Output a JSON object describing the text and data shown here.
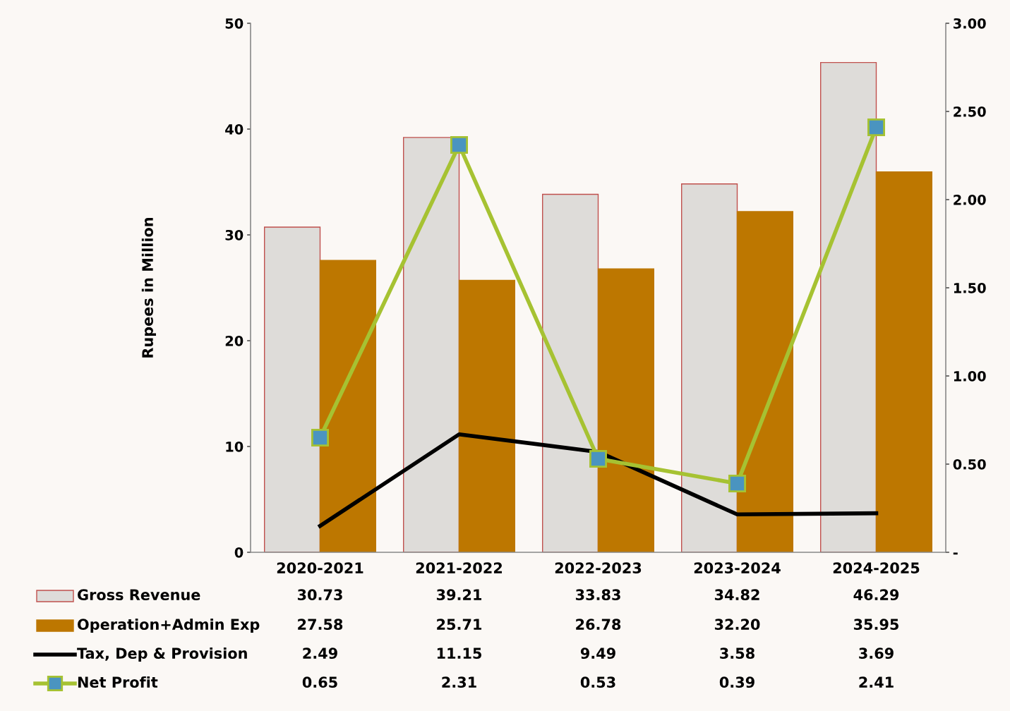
{
  "chart_data": {
    "type": "bar",
    "ylabel": "Rupees in Million",
    "categories": [
      "2020-2021",
      "2021-2022",
      "2022-2023",
      "2023-2024",
      "2024-2025"
    ],
    "series": [
      {
        "name": "Gross Revenue",
        "color": "#dedcd9",
        "values": [
          30.73,
          39.21,
          33.83,
          34.82,
          46.29
        ],
        "value_labels": [
          "30.73",
          "39.21",
          "33.83",
          "34.82",
          "46.29"
        ]
      },
      {
        "name": "Operation+Admin Exp",
        "color": "#bd7700",
        "values": [
          27.58,
          25.71,
          26.78,
          32.2,
          35.95
        ],
        "value_labels": [
          "27.58",
          "25.71",
          "26.78",
          "32.20",
          "35.95"
        ]
      },
      {
        "name": "Tax, Dep & Provision",
        "type": "line",
        "color": "#000000",
        "values": [
          2.49,
          11.15,
          9.49,
          3.58,
          3.69
        ],
        "value_labels": [
          "2.49",
          "11.15",
          "9.49",
          "3.58",
          "3.69"
        ]
      },
      {
        "name": "Net Profit",
        "type": "line",
        "axis": "y2",
        "marker": "square",
        "color": "#a6c232",
        "values": [
          0.65,
          2.31,
          0.53,
          0.39,
          2.41
        ],
        "value_labels": [
          "0.65",
          "2.31",
          "0.53",
          "0.39",
          "2.41"
        ]
      }
    ],
    "ylim": [
      0,
      50
    ],
    "yticks": [
      0,
      10,
      20,
      30,
      40,
      50
    ],
    "y2lim": [
      0,
      3.0
    ],
    "y2ticks": [
      {
        "value": 0,
        "label": "-"
      },
      {
        "value": 0.5,
        "label": "0.50"
      },
      {
        "value": 1.0,
        "label": "1.00"
      },
      {
        "value": 1.5,
        "label": "1.50"
      },
      {
        "value": 2.0,
        "label": "2.00"
      },
      {
        "value": 2.5,
        "label": "2.50"
      },
      {
        "value": 3.0,
        "label": "3.00"
      }
    ],
    "legend": "bottom",
    "grid": false
  }
}
